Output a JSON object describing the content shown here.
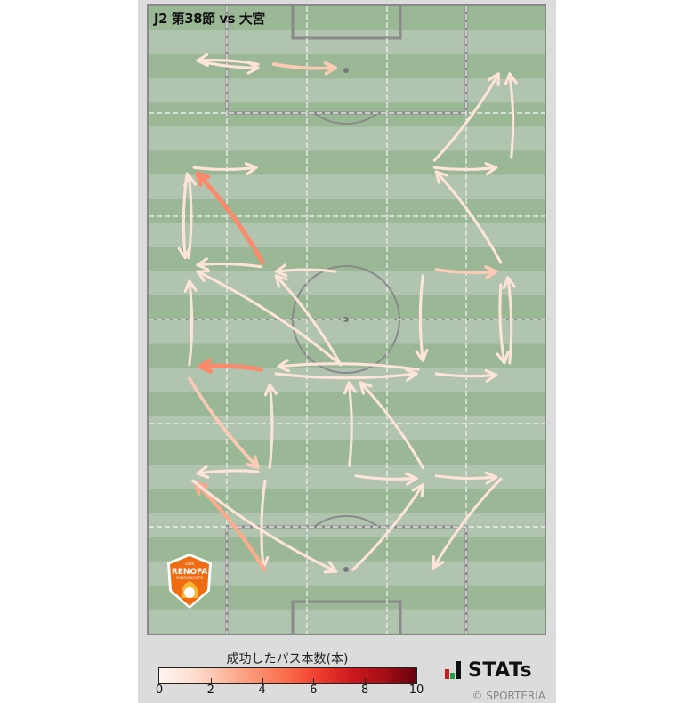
{
  "title": "J2 第38節 vs 大宮",
  "team_logo": {
    "text": "RENOFA",
    "subtext": "YAMAGUCHI FC",
    "year": "2006",
    "color": "#ef6c12"
  },
  "legend": {
    "title": "成功したパス本数(本)",
    "ticks": [
      "0",
      "2",
      "4",
      "6",
      "8",
      "10"
    ],
    "colormap": "Reds",
    "range": [
      0,
      10
    ]
  },
  "brand": {
    "name": "STATs",
    "icon": "stats-bars-icon"
  },
  "copyright": "© SPORTERIA",
  "colors": {
    "pitch_dark": "#9ab896",
    "pitch_light": "#b0c4b0",
    "lines": "#8a8a8a",
    "panel": "#dcdcdc"
  },
  "chart_data": {
    "type": "pass-map",
    "pitch_units": "meters",
    "pitch_size": [
      68,
      105
    ],
    "attack_direction": "up",
    "count_range": [
      0,
      10
    ],
    "passes": [
      {
        "from": [
          18.8,
          9.7
        ],
        "to": [
          8.4,
          9.1
        ],
        "count": 1
      },
      {
        "from": [
          8.4,
          9.1
        ],
        "to": [
          18.8,
          10.3
        ],
        "count": 1
      },
      {
        "from": [
          21.5,
          9.7
        ],
        "to": [
          32.1,
          10.3
        ],
        "count": 2
      },
      {
        "from": [
          49.1,
          25.8
        ],
        "to": [
          60.1,
          11.3
        ],
        "count": 1
      },
      {
        "from": [
          62.3,
          25.3
        ],
        "to": [
          62.0,
          11.3
        ],
        "count": 1
      },
      {
        "from": [
          7.8,
          27.0
        ],
        "to": [
          18.5,
          27.0
        ],
        "count": 1
      },
      {
        "from": [
          49.1,
          27.0
        ],
        "to": [
          59.7,
          27.0
        ],
        "count": 1
      },
      {
        "from": [
          19.6,
          42.9
        ],
        "to": [
          8.4,
          28.0
        ],
        "count": 4
      },
      {
        "from": [
          6.6,
          28.0
        ],
        "to": [
          6.3,
          42.1
        ],
        "count": 1
      },
      {
        "from": [
          6.9,
          42.1
        ],
        "to": [
          6.9,
          28.3
        ],
        "count": 1
      },
      {
        "from": [
          19.3,
          43.6
        ],
        "to": [
          8.4,
          43.3
        ],
        "count": 1
      },
      {
        "from": [
          60.5,
          42.9
        ],
        "to": [
          49.4,
          27.7
        ],
        "count": 1
      },
      {
        "from": [
          49.4,
          44.1
        ],
        "to": [
          59.7,
          44.4
        ],
        "count": 2
      },
      {
        "from": [
          32.1,
          44.4
        ],
        "to": [
          21.9,
          44.4
        ],
        "count": 1
      },
      {
        "from": [
          33.0,
          60.0
        ],
        "to": [
          8.4,
          44.4
        ],
        "count": 1
      },
      {
        "from": [
          33.0,
          60.0
        ],
        "to": [
          21.9,
          45.1
        ],
        "count": 1
      },
      {
        "from": [
          7.0,
          60.0
        ],
        "to": [
          7.0,
          46.0
        ],
        "count": 1
      },
      {
        "from": [
          19.3,
          60.8
        ],
        "to": [
          8.9,
          60.3
        ],
        "count": 4
      },
      {
        "from": [
          47.1,
          45.1
        ],
        "to": [
          47.1,
          59.3
        ],
        "count": 1
      },
      {
        "from": [
          60.5,
          46.6
        ],
        "to": [
          61.1,
          59.7
        ],
        "count": 1
      },
      {
        "from": [
          62.0,
          59.7
        ],
        "to": [
          61.7,
          45.4
        ],
        "count": 1
      },
      {
        "from": [
          46.3,
          60.8
        ],
        "to": [
          22.3,
          60.3
        ],
        "count": 1
      },
      {
        "from": [
          21.9,
          61.5
        ],
        "to": [
          46.0,
          61.5
        ],
        "count": 1
      },
      {
        "from": [
          49.4,
          61.5
        ],
        "to": [
          59.7,
          61.7
        ],
        "count": 1
      },
      {
        "from": [
          20.8,
          77.2
        ],
        "to": [
          20.8,
          63.3
        ],
        "count": 1
      },
      {
        "from": [
          34.5,
          76.9
        ],
        "to": [
          34.4,
          63.0
        ],
        "count": 1
      },
      {
        "from": [
          47.1,
          77.2
        ],
        "to": [
          36.4,
          63.0
        ],
        "count": 1
      },
      {
        "from": [
          7.0,
          62.3
        ],
        "to": [
          18.8,
          77.2
        ],
        "count": 2
      },
      {
        "from": [
          18.8,
          77.9
        ],
        "to": [
          8.4,
          78.2
        ],
        "count": 1
      },
      {
        "from": [
          20.0,
          79.4
        ],
        "to": [
          19.7,
          94.0
        ],
        "count": 1
      },
      {
        "from": [
          19.9,
          94.3
        ],
        "to": [
          8.1,
          79.8
        ],
        "count": 3
      },
      {
        "from": [
          7.6,
          79.4
        ],
        "to": [
          32.2,
          94.6
        ],
        "count": 1
      },
      {
        "from": [
          35.1,
          94.3
        ],
        "to": [
          47.1,
          80.1
        ],
        "count": 1
      },
      {
        "from": [
          35.6,
          78.6
        ],
        "to": [
          46.0,
          79.0
        ],
        "count": 1
      },
      {
        "from": [
          49.4,
          78.6
        ],
        "to": [
          59.7,
          78.8
        ],
        "count": 1
      },
      {
        "from": [
          60.5,
          79.1
        ],
        "to": [
          48.9,
          94.0
        ],
        "count": 1
      }
    ]
  }
}
